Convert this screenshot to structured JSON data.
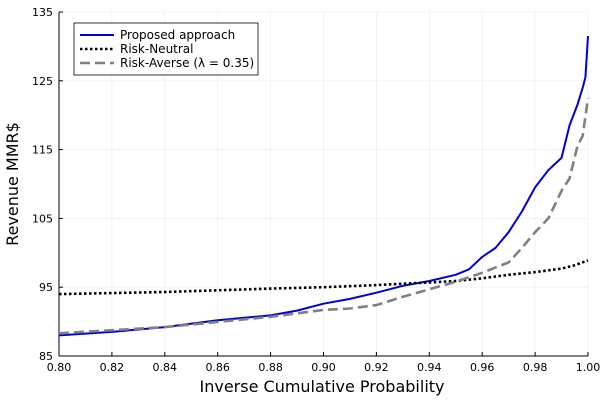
{
  "chart_data": {
    "type": "line",
    "title": "",
    "xlabel": "Inverse Cumulative Probability",
    "ylabel": "Revenue MMR$",
    "xlim": [
      0.8,
      1.0
    ],
    "ylim": [
      85,
      135
    ],
    "xticks": [
      "0.80",
      "0.82",
      "0.84",
      "0.86",
      "0.88",
      "0.90",
      "0.92",
      "0.94",
      "0.96",
      "0.98",
      "1.00"
    ],
    "yticks": [
      "85",
      "95",
      "105",
      "115",
      "125",
      "135"
    ],
    "grid": true,
    "legend_position": "top-left",
    "series": [
      {
        "name": "Proposed approach",
        "color": "#0000dd",
        "style": "solid",
        "x": [
          0.8,
          0.82,
          0.84,
          0.86,
          0.88,
          0.89,
          0.9,
          0.91,
          0.92,
          0.93,
          0.94,
          0.95,
          0.955,
          0.96,
          0.965,
          0.97,
          0.975,
          0.98,
          0.985,
          0.99,
          0.993,
          0.996,
          0.998,
          0.999,
          1.0
        ],
        "y": [
          88.0,
          88.5,
          89.2,
          90.2,
          90.9,
          91.6,
          92.6,
          93.3,
          94.2,
          95.2,
          95.9,
          96.8,
          97.6,
          99.4,
          100.7,
          103.0,
          106.0,
          109.5,
          112.0,
          113.8,
          118.5,
          121.5,
          124.0,
          125.5,
          131.5
        ]
      },
      {
        "name": "Risk-Neutral",
        "color": "#000000",
        "style": "dotted",
        "x": [
          0.8,
          0.84,
          0.88,
          0.9,
          0.92,
          0.94,
          0.95,
          0.96,
          0.97,
          0.98,
          0.99,
          0.995,
          1.0
        ],
        "y": [
          94.0,
          94.3,
          94.8,
          95.0,
          95.3,
          95.7,
          95.9,
          96.3,
          96.8,
          97.2,
          97.7,
          98.2,
          98.9
        ]
      },
      {
        "name": "Risk-Averse (λ = 0.35)",
        "color": "#808080",
        "style": "dashed",
        "x": [
          0.8,
          0.84,
          0.88,
          0.9,
          0.91,
          0.92,
          0.93,
          0.94,
          0.95,
          0.96,
          0.97,
          0.975,
          0.98,
          0.985,
          0.99,
          0.993,
          0.996,
          0.998,
          1.0
        ],
        "y": [
          88.3,
          89.2,
          90.7,
          91.7,
          91.9,
          92.4,
          93.6,
          94.7,
          95.8,
          97.1,
          98.6,
          100.7,
          103.0,
          105.0,
          109.0,
          110.8,
          115.5,
          117.0,
          122.5
        ]
      }
    ]
  }
}
